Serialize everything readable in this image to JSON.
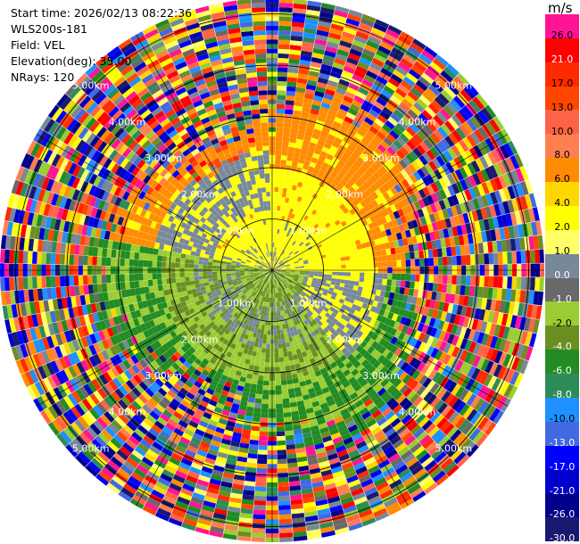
{
  "info": {
    "start_time": "Start time: 2026/02/13 08:22:36",
    "instrument": "WLS200s-181",
    "field": "Field: VEL",
    "elevation": "Elevation(deg): 35.00",
    "nrays": "NRays: 120"
  },
  "colorbar": {
    "unit": "m/s",
    "levels": [
      {
        "label": "26.0",
        "color": "#ff1493"
      },
      {
        "label": "21.0",
        "color": "#ff0000"
      },
      {
        "label": "17.0",
        "color": "#ff2a00"
      },
      {
        "label": "13.0",
        "color": "#ff4500"
      },
      {
        "label": "10.0",
        "color": "#ff6347"
      },
      {
        "label": "8.0",
        "color": "#ff7f50"
      },
      {
        "label": "6.0",
        "color": "#ff8c00"
      },
      {
        "label": "4.0",
        "color": "#ffd700"
      },
      {
        "label": "2.0",
        "color": "#ffff00"
      },
      {
        "label": "1.0",
        "color": "#ffff66"
      },
      {
        "label": "0.0",
        "color": "#778899"
      },
      {
        "label": "-1.0",
        "color": "#696969"
      },
      {
        "label": "-2.0",
        "color": "#9acd32"
      },
      {
        "label": "-4.0",
        "color": "#6b8e23"
      },
      {
        "label": "-6.0",
        "color": "#228b22"
      },
      {
        "label": "-8.0",
        "color": "#2e8b57"
      },
      {
        "label": "-10.0",
        "color": "#1e90ff"
      },
      {
        "label": "-13.0",
        "color": "#4169e1"
      },
      {
        "label": "-17.0",
        "color": "#0000ff"
      },
      {
        "label": "-21.0",
        "color": "#0000cd"
      },
      {
        "label": "-26.0",
        "color": "#00008b"
      },
      {
        "label": "-30.0",
        "color": "#191970"
      }
    ]
  },
  "range_rings": [
    {
      "label": "1.00km"
    },
    {
      "label": "2.00km"
    },
    {
      "label": "3.00km"
    },
    {
      "label": "4.00km"
    },
    {
      "label": "5.00km"
    }
  ],
  "colors": {
    "near_positive": "#ffff00",
    "mid_positive": "#ff8c00",
    "near_negative": "#9acd32",
    "olive_negative": "#6b8e23",
    "green_negative": "#228b22",
    "gray": "#778899",
    "grid": "#000000"
  }
}
